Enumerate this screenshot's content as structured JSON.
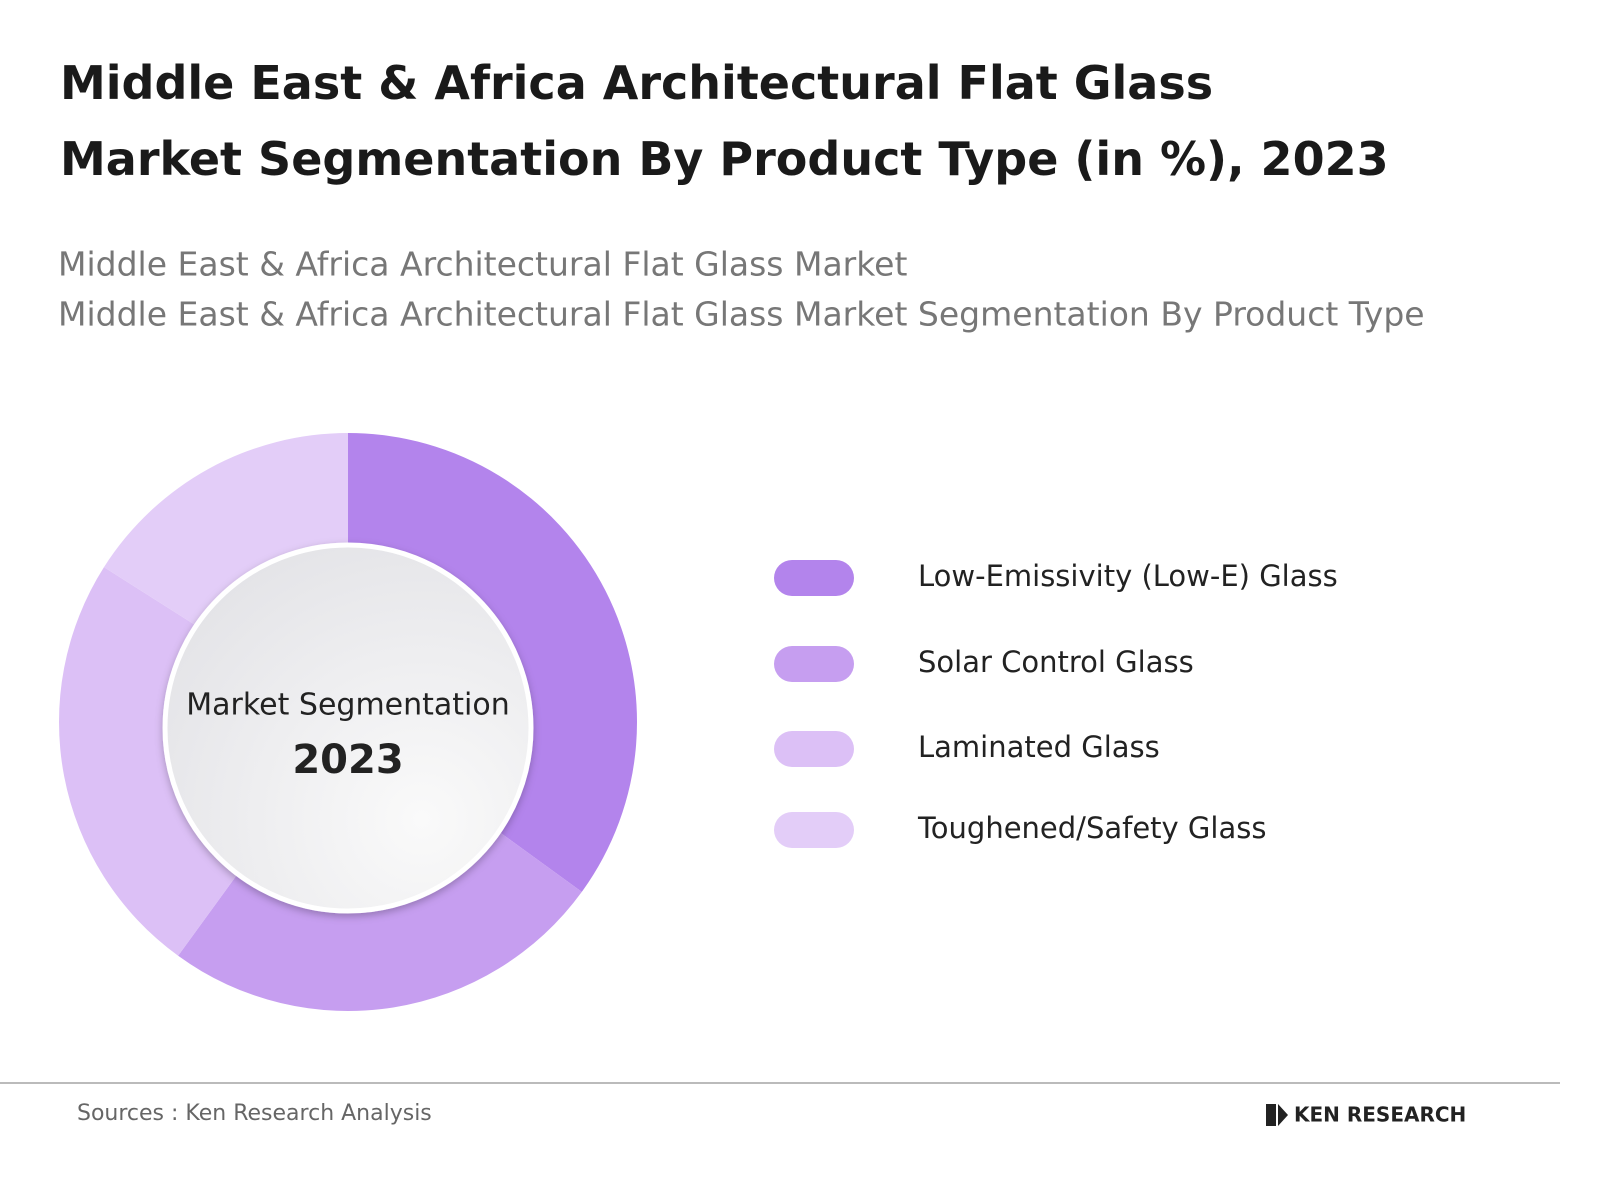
{
  "chart_data": {
    "type": "donut",
    "title": "Middle East & Africa Architectural Flat Glass Market Segmentation By Product Type (in %), 2023",
    "subtitle": [
      "Middle East & Africa Architectural Flat Glass Market",
      "Middle East & Africa Architectural Flat Glass Market Segmentation By Product Type"
    ],
    "center_label": "Market Segmentation",
    "center_year": "2023",
    "categories": [
      "Low-Emissivity (Low-E) Glass",
      "Solar Control Glass",
      "Laminated Glass",
      "Toughened/Safety Glass"
    ],
    "values": [
      35,
      25,
      24,
      16
    ],
    "colors": [
      "#b384ec",
      "#c69ef0",
      "#dcc0f6",
      "#e3cdf8"
    ],
    "source": "Sources : Ken Research Analysis",
    "logo": "KEN RESEARCH"
  }
}
